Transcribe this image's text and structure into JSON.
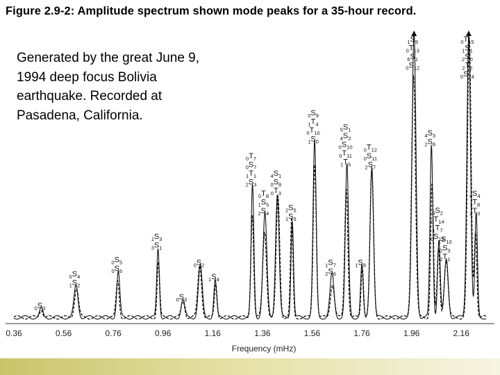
{
  "slide": {
    "title": "Figure 2.9-2: Amplitude spectrum shown mode peaks for a 35-hour record.",
    "caption_lines": [
      "Generated by the great June 9,",
      "1994 deep focus Bolivia",
      "earthquake. Recorded at",
      "Pasadena, California."
    ]
  },
  "chart_data": {
    "type": "line",
    "xlabel": "Frequency (mHz)",
    "xlim": [
      0.36,
      2.26
    ],
    "ylim": [
      0,
      1.0
    ],
    "x_ticks": [
      "0.36",
      "0.56",
      "0.76",
      "0.96",
      "1.16",
      "1.36",
      "1.56",
      "1.76",
      "1.96",
      "2.16"
    ],
    "line_colors": [
      "#111111",
      "#111111"
    ],
    "series_styles": [
      "solid",
      "dashed"
    ],
    "peaks": [
      {
        "f": 0.47,
        "a": 0.03,
        "label": [
          "0S3"
        ]
      },
      {
        "f": 0.61,
        "a": 0.11,
        "label": [
          "0S4",
          "1S2"
        ]
      },
      {
        "f": 0.78,
        "a": 0.16,
        "label": [
          "0S5",
          "0S6"
        ]
      },
      {
        "f": 0.94,
        "a": 0.24,
        "label": [
          "1S3",
          "3S1"
        ]
      },
      {
        "f": 1.04,
        "a": 0.06,
        "label": [
          "0S3"
        ]
      },
      {
        "f": 1.11,
        "a": 0.18,
        "label": [
          "0S2"
        ]
      },
      {
        "f": 1.17,
        "a": 0.13,
        "label": [
          "1S4"
        ]
      },
      {
        "f": 1.32,
        "a": 0.46,
        "label": [
          "0T7",
          "0S7",
          "1T1",
          "2S3"
        ]
      },
      {
        "f": 1.37,
        "a": 0.36,
        "label": [
          "0T8",
          "1S5",
          "2S4"
        ]
      },
      {
        "f": 1.42,
        "a": 0.43,
        "label": [
          "4S1",
          "0S8",
          "0T3"
        ]
      },
      {
        "f": 1.48,
        "a": 0.34,
        "label": [
          "2S5",
          "1S6"
        ]
      },
      {
        "f": 1.57,
        "a": 0.61,
        "label": [
          "0S9",
          "1T4",
          "0T10",
          "1S0"
        ]
      },
      {
        "f": 1.64,
        "a": 0.15,
        "label": [
          "1S7",
          "2S6"
        ]
      },
      {
        "f": 1.7,
        "a": 0.53,
        "label": [
          "5S1",
          "4S2",
          "0S10",
          "0T11",
          "1T5"
        ]
      },
      {
        "f": 1.76,
        "a": 0.18,
        "label": [
          "1S8"
        ]
      },
      {
        "f": 1.8,
        "a": 0.52,
        "label": [
          "0T12",
          "0S11",
          "2S7"
        ]
      },
      {
        "f": 1.97,
        "a": 0.99,
        "label": [
          "1S9",
          "0T13",
          "6S1",
          "0S12"
        ]
      },
      {
        "f": 2.04,
        "a": 0.6,
        "label": [
          "4S3",
          "2S8"
        ]
      },
      {
        "f": 2.07,
        "a": 0.27,
        "label": [
          "0S2",
          "0T14",
          "1T7",
          "0S13"
        ]
      },
      {
        "f": 2.1,
        "a": 0.2,
        "label": [
          "1S10",
          "0S3",
          "2T1"
        ]
      },
      {
        "f": 2.19,
        "a": 0.99,
        "label": [
          "0T15",
          "1S1",
          "2S0",
          "2T2",
          "0S14"
        ]
      },
      {
        "f": 2.22,
        "a": 0.36,
        "label": [
          "4S4",
          "1T8",
          "2T3"
        ]
      }
    ]
  }
}
